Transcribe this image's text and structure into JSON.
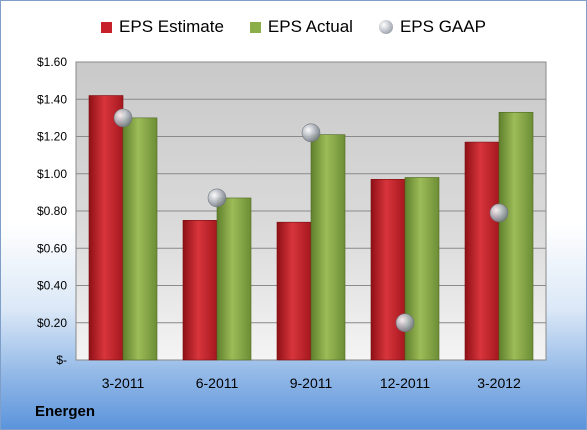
{
  "company": "Energen",
  "colors": {
    "estimate": "#c8202a",
    "actual": "#8cae4a",
    "gaap": "#b8bcc4"
  },
  "chart_data": {
    "type": "bar",
    "title": "",
    "xlabel": "",
    "ylabel": "",
    "categories": [
      "3-2011",
      "6-2011",
      "9-2011",
      "12-2011",
      "3-2012"
    ],
    "series": [
      {
        "name": "EPS Estimate",
        "type": "bar",
        "values": [
          1.42,
          0.75,
          0.74,
          0.97,
          1.17
        ]
      },
      {
        "name": "EPS Actual",
        "type": "bar",
        "values": [
          1.3,
          0.87,
          1.21,
          0.98,
          1.33
        ]
      },
      {
        "name": "EPS GAAP",
        "type": "scatter",
        "values": [
          1.3,
          0.87,
          1.22,
          0.2,
          0.79
        ]
      }
    ],
    "ylim": [
      0,
      1.6
    ],
    "yticks": [
      0,
      0.2,
      0.4,
      0.6,
      0.8,
      1.0,
      1.2,
      1.4,
      1.6
    ],
    "ytick_labels": [
      "$-",
      "$0.20",
      "$0.40",
      "$0.60",
      "$0.80",
      "$1.00",
      "$1.20",
      "$1.40",
      "$1.60"
    ],
    "grid": true,
    "legend": "top"
  }
}
